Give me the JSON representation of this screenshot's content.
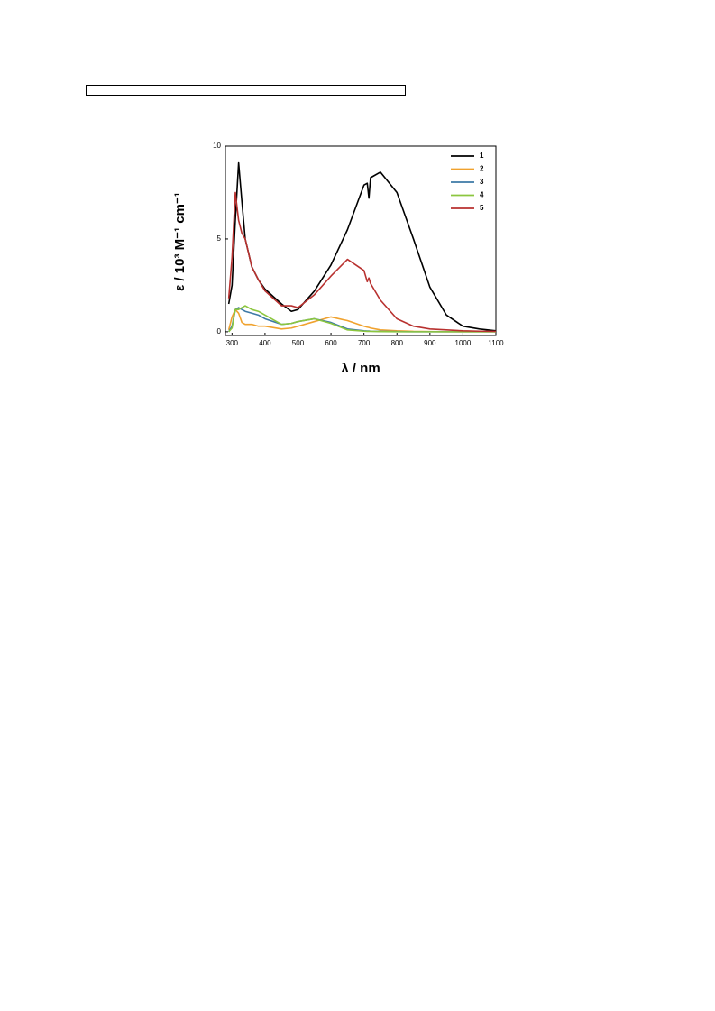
{
  "chart_data": {
    "type": "line",
    "xlabel": "λ / nm",
    "ylabel": "ε / 10³ M⁻¹ cm⁻¹",
    "x": [
      290,
      300,
      310,
      320,
      330,
      340,
      360,
      380,
      400,
      450,
      480,
      500,
      550,
      600,
      650,
      700,
      710,
      715,
      720,
      750,
      800,
      850,
      900,
      950,
      1000,
      1050,
      1100
    ],
    "series": [
      {
        "name": "1",
        "color": "#000000",
        "values": [
          1.5,
          2.5,
          6,
          9.1,
          7,
          5,
          3.5,
          2.8,
          2.3,
          1.5,
          1.1,
          1.2,
          2.2,
          3.6,
          5.5,
          7.9,
          8.0,
          7.2,
          8.3,
          8.6,
          7.5,
          5,
          2.4,
          0.9,
          0.3,
          0.15,
          0.05
        ]
      },
      {
        "name": "2",
        "color": "#f0a22e",
        "values": [
          0.1,
          0.8,
          1.2,
          1,
          0.5,
          0.4,
          0.4,
          0.3,
          0.3,
          0.15,
          0.2,
          0.3,
          0.55,
          0.8,
          0.6,
          0.3,
          0.25,
          0.23,
          0.2,
          0.1,
          0.05,
          0.02,
          0.01,
          0,
          0,
          0,
          0
        ]
      },
      {
        "name": "3",
        "color": "#3d79a6",
        "values": [
          0,
          0.3,
          1.2,
          1.3,
          1.2,
          1.1,
          1.0,
          0.9,
          0.7,
          0.4,
          0.45,
          0.55,
          0.7,
          0.5,
          0.15,
          0.05,
          0.04,
          0.04,
          0.03,
          0.02,
          0.01,
          0,
          0,
          0,
          0,
          0,
          0
        ]
      },
      {
        "name": "4",
        "color": "#8cc63f",
        "values": [
          0,
          0.2,
          1.2,
          1.2,
          1.3,
          1.4,
          1.2,
          1.1,
          0.9,
          0.4,
          0.45,
          0.55,
          0.7,
          0.45,
          0.1,
          0.03,
          0.02,
          0.02,
          0.02,
          0.01,
          0,
          0,
          0,
          0,
          0,
          0,
          0
        ]
      },
      {
        "name": "5",
        "color": "#b8312f",
        "values": [
          1.8,
          4,
          7.5,
          6,
          5.3,
          5.0,
          3.5,
          2.8,
          2.2,
          1.4,
          1.4,
          1.3,
          2,
          3,
          3.9,
          3.3,
          2.7,
          2.9,
          2.6,
          1.7,
          0.7,
          0.3,
          0.15,
          0.1,
          0.05,
          0.03,
          0.02
        ]
      }
    ],
    "xlim": [
      280,
      1100
    ],
    "ylim": [
      -0.2,
      10
    ],
    "xticks": [
      300,
      400,
      500,
      600,
      700,
      800,
      900,
      1000,
      1100
    ],
    "yticks": [
      0,
      5,
      10
    ],
    "legend": "upper-right"
  }
}
